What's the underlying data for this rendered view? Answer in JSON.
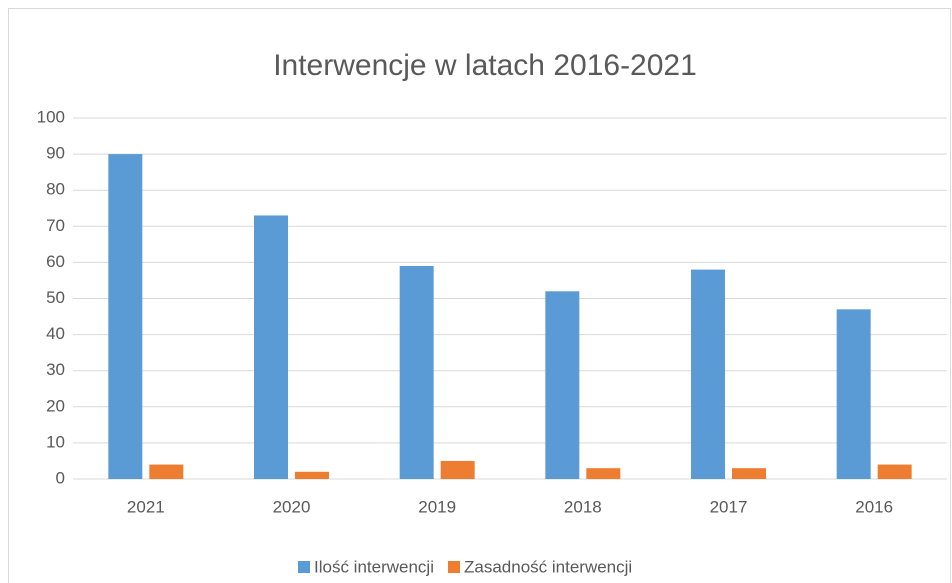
{
  "chart_data": {
    "type": "bar",
    "title": "Interwencje w latach 2016-2021",
    "categories": [
      "2021",
      "2020",
      "2019",
      "2018",
      "2017",
      "2016"
    ],
    "series": [
      {
        "name": "Ilość interwencji",
        "color": "#5b9bd5",
        "values": [
          90,
          73,
          59,
          52,
          58,
          47
        ]
      },
      {
        "name": "Zasadność interwencji",
        "color": "#ed7d31",
        "values": [
          4,
          2,
          5,
          3,
          3,
          4
        ]
      }
    ],
    "ylim": [
      0,
      100
    ],
    "yticks": [
      0,
      10,
      20,
      30,
      40,
      50,
      60,
      70,
      80,
      90,
      100
    ],
    "grid": true,
    "legend": "bottom"
  }
}
